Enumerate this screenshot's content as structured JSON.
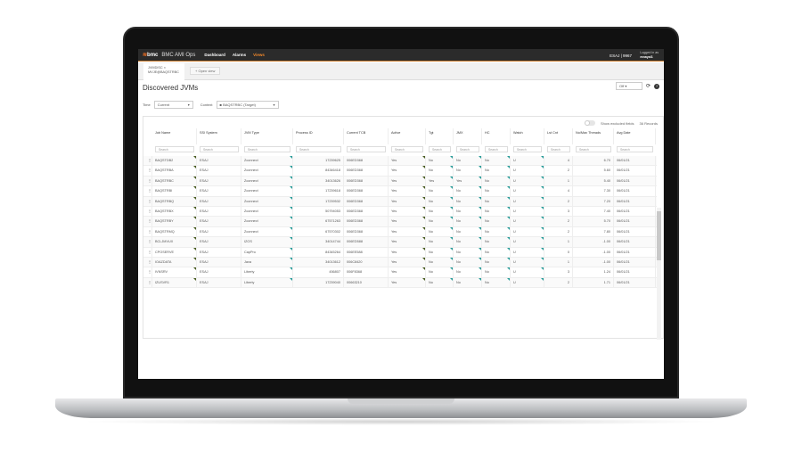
{
  "app": {
    "logo": "bmc",
    "title": "BMC AMI Ops",
    "nav": [
      "Dashboard",
      "Alarms",
      "Views"
    ],
    "active_nav": "Views",
    "system": "ESAJ | 9967",
    "logged_in_label": "Logged in as",
    "user": "mnayal1"
  },
  "tabs": [
    {
      "line1": "JVMDISC",
      "line2": "MVJE@BAQSTRBC"
    }
  ],
  "open_view": "Open view",
  "page_title": "Discovered JVMs",
  "refresh": "Off",
  "filters": {
    "time_label": "Time",
    "time_value": "Current",
    "context_label": "Context",
    "context_value": "BAQSTRBC (Target)"
  },
  "table_toolbar": {
    "show_excluded": "Show excluded fields",
    "records": "36 Records"
  },
  "search_placeholder": "Search",
  "columns": [
    "Job Name",
    "SSI System",
    "JVM Type",
    "Process ID",
    "Current TCB",
    "Active",
    "Tgt",
    "JMX",
    "HC",
    "Watch",
    "Lst Cnt",
    "No/Max Threads",
    "Avg Date"
  ],
  "rows": [
    [
      "BAQSTDB2",
      "ESAJ",
      "Zconnect",
      "17239625",
      "006ED368",
      "Yes",
      "No",
      "No",
      "No",
      "U",
      "4",
      "6.70",
      "06/01/21"
    ],
    [
      "BAQSTRBA",
      "ESAJ",
      "Zconnect",
      "84346418",
      "006ED368",
      "Yes",
      "No",
      "No",
      "No",
      "U",
      "2",
      "5.60",
      "06/01/21"
    ],
    [
      "BAQSTRBC",
      "ESAJ",
      "Zconnect",
      "34013626",
      "006ED368",
      "Yes",
      "Yes",
      "Yes",
      "No",
      "U",
      "1",
      "5.40",
      "06/01/21"
    ],
    [
      "BAQSTRBI",
      "ESAJ",
      "Zconnect",
      "17239618",
      "006ED368",
      "Yes",
      "No",
      "No",
      "No",
      "U",
      "4",
      "7.30",
      "06/01/21"
    ],
    [
      "BAQSTRBQ",
      "ESAJ",
      "Zconnect",
      "17239532",
      "006ED368",
      "Yes",
      "No",
      "No",
      "No",
      "U",
      "2",
      "7.20",
      "06/01/21"
    ],
    [
      "BAQSTRBX",
      "ESAJ",
      "Zconnect",
      "50794053",
      "006ED368",
      "Yes",
      "No",
      "No",
      "No",
      "U",
      "3",
      "7.40",
      "06/01/21"
    ],
    [
      "BAQSTRBY",
      "ESAJ",
      "Zconnect",
      "67571263",
      "006ED368",
      "Yes",
      "No",
      "No",
      "No",
      "U",
      "2",
      "5.70",
      "06/01/21"
    ],
    [
      "BAQSTRMQ",
      "ESAJ",
      "Zconnect",
      "67570302",
      "006ED368",
      "Yes",
      "No",
      "No",
      "No",
      "U",
      "2",
      "7.80",
      "06/01/21"
    ],
    [
      "BCLJMVUX",
      "ESAJ",
      "IZOS",
      "34014744",
      "006ED588",
      "Yes",
      "No",
      "No",
      "No",
      "U",
      "1",
      "-1.00",
      "06/01/21"
    ],
    [
      "CPOSERVE",
      "ESAJ",
      "CapPro",
      "84345264",
      "006EE588",
      "Yes",
      "No",
      "No",
      "No",
      "U",
      "0",
      "-1.00",
      "06/01/21"
    ],
    [
      "IOAZDATA",
      "ESAJ",
      "Java",
      "34013612",
      "006C8420",
      "Yes",
      "No",
      "No",
      "No",
      "U",
      "1",
      "-1.00",
      "06/01/21"
    ],
    [
      "IVNSRV",
      "ESAJ",
      "Liberty",
      "456807",
      "006F8368",
      "Yes",
      "No",
      "No",
      "No",
      "U",
      "3",
      "1.24",
      "06/01/21"
    ],
    [
      "IZUSVR1",
      "ESAJ",
      "Liberty",
      "17239040",
      "00663210",
      "Yes",
      "No",
      "No",
      "No",
      "U",
      "2",
      "1.71",
      "06/01/21"
    ]
  ],
  "colors": {
    "accent": "#f3892b",
    "header": "#2b2b2b",
    "marker": "#2a9d9a"
  }
}
